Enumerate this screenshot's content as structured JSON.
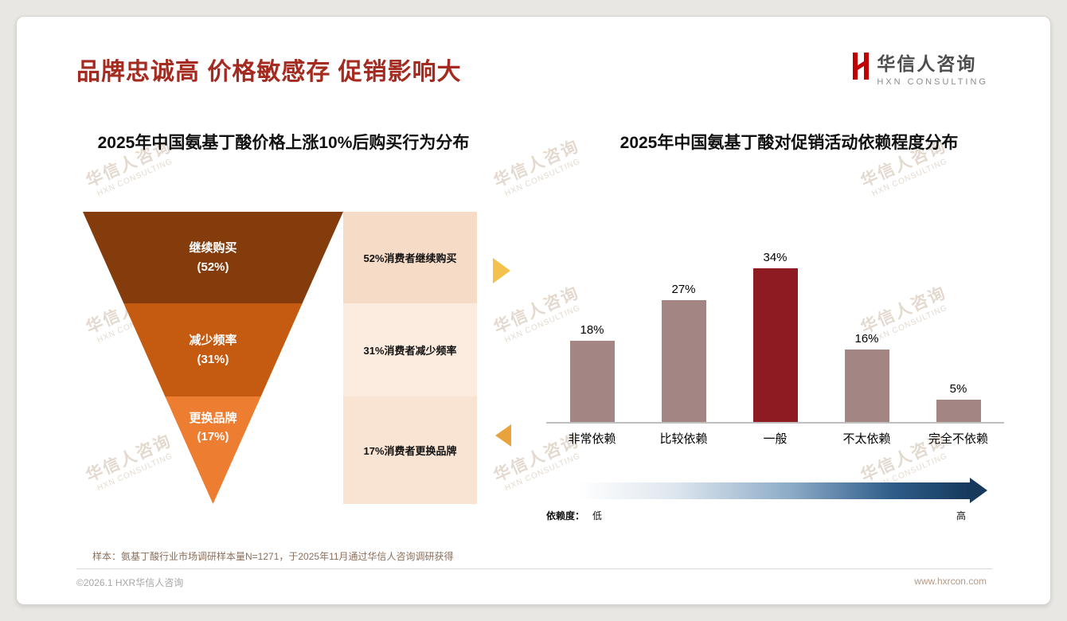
{
  "slide": {
    "title": "品牌忠诚高 价格敏感存 促销影响大",
    "logo": {
      "name": "华信人咨询",
      "tagline": "HXN CONSULTING"
    },
    "watermark": {
      "line1": "华信人咨询",
      "line2": "HXN CONSULTING"
    },
    "footnote": "样本：氨基丁酸行业市场调研样本量N=1271，于2025年11月通过华信人咨询调研获得",
    "footer": {
      "left": "©2026.1 HXR华信人咨询",
      "right": "www.hxrcon.com"
    }
  },
  "chart_data": [
    {
      "type": "funnel",
      "title": "2025年中国氨基丁酸价格上涨10%后购买行为分布",
      "stages": [
        {
          "label": "继续购买",
          "pct_label": "(52%)",
          "value": 52,
          "annotation": "52%消费者继续购买",
          "color": "#843C0C",
          "panel_color": "#F6DBC7"
        },
        {
          "label": "减少频率",
          "pct_label": "(31%)",
          "value": 31,
          "annotation": "31%消费者减少频率",
          "color": "#C55A11",
          "panel_color": "#FBECDF"
        },
        {
          "label": "更换品牌",
          "pct_label": "(17%)",
          "value": 17,
          "annotation": "17%消费者更换品牌",
          "color": "#ED7D31",
          "panel_color": "#F9E3D2"
        }
      ]
    },
    {
      "type": "bar",
      "title": "2025年中国氨基丁酸对促销活动依赖程度分布",
      "categories": [
        "非常依赖",
        "比较依赖",
        "一般",
        "不太依赖",
        "完全不依赖"
      ],
      "values": [
        18,
        27,
        34,
        16,
        5
      ],
      "value_labels": [
        "18%",
        "27%",
        "34%",
        "16%",
        "5%"
      ],
      "bar_color": "#A38583",
      "highlight_color": "#8E1B22",
      "highlight_index": 2,
      "ylim": [
        0,
        40
      ],
      "grid": false,
      "legend": {
        "prefix": "依赖度：",
        "low": "低",
        "high": "高"
      }
    }
  ]
}
